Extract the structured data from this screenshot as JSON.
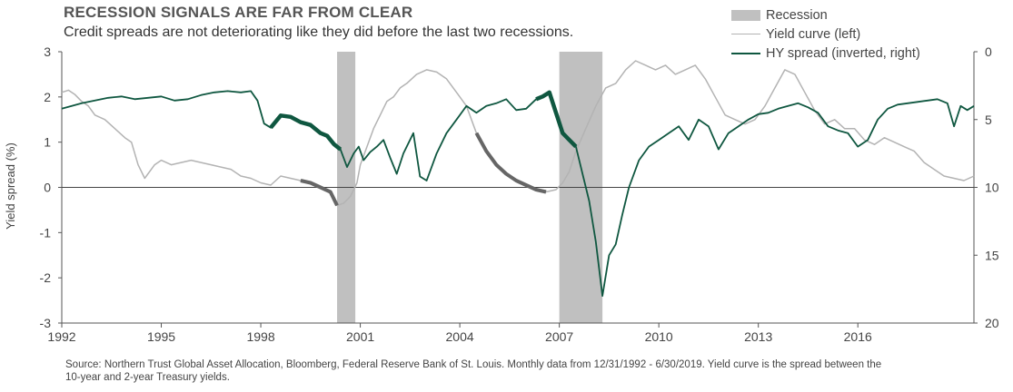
{
  "header": {
    "title": "RECESSION SIGNALS ARE FAR FROM CLEAR",
    "subtitle": "Credit spreads are not deteriorating like they did before the last two recessions."
  },
  "legend": {
    "recession": "Recession",
    "yield_curve": "Yield curve (left)",
    "hy_spread": "HY spread (inverted, right)"
  },
  "source": "Source: Northern Trust Global Asset Allocation, Bloomberg, Federal Reserve Bank of St. Louis. Monthly data from 12/31/1992 - 6/30/2019. Yield curve is the spread between the 10-year and 2-year Treasury yields.",
  "colors": {
    "yield_curve": "#b3b3b3",
    "yield_curve_highlight": "#666666",
    "hy_spread": "#0f5740",
    "recession": "#c0c0c0"
  },
  "chart_data": {
    "type": "line",
    "x_range": [
      1992.0,
      2019.5
    ],
    "ylim_left": [
      -3,
      3
    ],
    "ylim_right": [
      20,
      0
    ],
    "ylabel_left": "Yield spread  (%)",
    "ylabel_right": "",
    "x_ticks": [
      1992,
      1995,
      1998,
      2001,
      2004,
      2007,
      2010,
      2013,
      2016
    ],
    "x_tick_labels": [
      "1992",
      "1995",
      "1998",
      "2001",
      "2004",
      "2007",
      "2010",
      "2013",
      "2016"
    ],
    "y_left_ticks": [
      3,
      2,
      1,
      0,
      -1,
      -2,
      -3
    ],
    "y_left_tick_labels": [
      "3",
      "2",
      "1",
      "0",
      "-1",
      "-2",
      "-3"
    ],
    "y_right_ticks": [
      0,
      5,
      10,
      15,
      20
    ],
    "y_right_tick_labels": [
      "0",
      "5",
      "10",
      "15",
      "20"
    ],
    "recessions": [
      {
        "start": 2000.3,
        "end": 2000.85
      },
      {
        "start": 2007.0,
        "end": 2008.3
      }
    ],
    "series": [
      {
        "name": "Yield curve (left)",
        "axis": "left",
        "x": [
          1992.0,
          1992.2,
          1992.4,
          1992.6,
          1992.8,
          1993.0,
          1993.3,
          1993.6,
          1993.9,
          1994.1,
          1994.3,
          1994.5,
          1994.8,
          1995.0,
          1995.3,
          1995.6,
          1995.9,
          1996.2,
          1996.5,
          1996.8,
          1997.1,
          1997.4,
          1997.7,
          1998.0,
          1998.3,
          1998.6,
          1998.9,
          1999.2,
          1999.5,
          1999.8,
          2000.1,
          2000.3,
          2000.5,
          2000.7,
          2000.9,
          2001.0,
          2001.2,
          2001.4,
          2001.6,
          2001.8,
          2002.0,
          2002.2,
          2002.4,
          2002.7,
          2003.0,
          2003.3,
          2003.6,
          2003.9,
          2004.2,
          2004.5,
          2004.8,
          2005.1,
          2005.4,
          2005.7,
          2006.0,
          2006.3,
          2006.6,
          2006.9,
          2007.1,
          2007.3,
          2007.5,
          2007.8,
          2008.1,
          2008.4,
          2008.7,
          2009.0,
          2009.3,
          2009.6,
          2009.9,
          2010.2,
          2010.5,
          2010.8,
          2011.1,
          2011.4,
          2011.7,
          2012.0,
          2012.3,
          2012.6,
          2012.9,
          2013.2,
          2013.5,
          2013.8,
          2014.1,
          2014.4,
          2014.7,
          2015.0,
          2015.3,
          2015.6,
          2015.9,
          2016.2,
          2016.5,
          2016.8,
          2017.1,
          2017.4,
          2017.7,
          2018.0,
          2018.3,
          2018.6,
          2018.9,
          2019.2,
          2019.5
        ],
        "y": [
          2.1,
          2.15,
          2.05,
          1.9,
          1.8,
          1.6,
          1.5,
          1.3,
          1.1,
          1.0,
          0.5,
          0.2,
          0.5,
          0.6,
          0.5,
          0.55,
          0.6,
          0.55,
          0.5,
          0.45,
          0.4,
          0.25,
          0.2,
          0.1,
          0.05,
          0.25,
          0.2,
          0.15,
          0.1,
          0.0,
          -0.1,
          -0.4,
          -0.35,
          -0.2,
          0.1,
          0.5,
          0.9,
          1.3,
          1.6,
          1.9,
          2.0,
          2.2,
          2.3,
          2.5,
          2.6,
          2.55,
          2.4,
          2.1,
          1.8,
          1.2,
          0.8,
          0.5,
          0.3,
          0.15,
          0.05,
          -0.05,
          -0.1,
          -0.05,
          0.1,
          0.35,
          0.8,
          1.3,
          1.8,
          2.2,
          2.3,
          2.6,
          2.8,
          2.7,
          2.6,
          2.7,
          2.5,
          2.6,
          2.7,
          2.4,
          2.0,
          1.6,
          1.5,
          1.4,
          1.5,
          1.8,
          2.2,
          2.6,
          2.5,
          2.1,
          1.7,
          1.4,
          1.5,
          1.3,
          1.3,
          1.05,
          0.95,
          1.1,
          1.0,
          0.9,
          0.8,
          0.55,
          0.4,
          0.25,
          0.2,
          0.15,
          0.25
        ]
      },
      {
        "name": "HY spread (inverted, right)",
        "axis": "right",
        "x": [
          1992.0,
          1992.3,
          1992.6,
          1993.0,
          1993.4,
          1993.8,
          1994.2,
          1994.6,
          1995.0,
          1995.4,
          1995.8,
          1996.2,
          1996.6,
          1997.0,
          1997.4,
          1997.7,
          1997.9,
          1998.1,
          1998.3,
          1998.6,
          1998.9,
          1999.2,
          1999.5,
          1999.8,
          2000.0,
          2000.2,
          2000.4,
          2000.6,
          2000.8,
          2000.95,
          2001.1,
          2001.3,
          2001.5,
          2001.7,
          2001.9,
          2002.1,
          2002.3,
          2002.6,
          2002.8,
          2003.0,
          2003.3,
          2003.6,
          2003.9,
          2004.2,
          2004.5,
          2004.8,
          2005.1,
          2005.4,
          2005.7,
          2006.0,
          2006.3,
          2006.5,
          2006.7,
          2006.9,
          2007.1,
          2007.3,
          2007.5,
          2007.7,
          2007.9,
          2008.1,
          2008.3,
          2008.5,
          2008.7,
          2008.9,
          2009.1,
          2009.4,
          2009.7,
          2010.0,
          2010.3,
          2010.6,
          2010.9,
          2011.2,
          2011.5,
          2011.8,
          2012.1,
          2012.4,
          2012.7,
          2013.0,
          2013.3,
          2013.6,
          2013.9,
          2014.2,
          2014.5,
          2014.8,
          2015.1,
          2015.4,
          2015.7,
          2016.0,
          2016.3,
          2016.6,
          2016.9,
          2017.2,
          2017.5,
          2017.8,
          2018.1,
          2018.4,
          2018.7,
          2018.9,
          2019.1,
          2019.3,
          2019.5
        ],
        "y": [
          4.2,
          4.0,
          3.8,
          3.6,
          3.4,
          3.3,
          3.5,
          3.4,
          3.3,
          3.6,
          3.5,
          3.2,
          3.0,
          2.9,
          3.0,
          2.9,
          3.6,
          5.3,
          5.6,
          4.7,
          4.8,
          5.2,
          5.4,
          6.0,
          6.2,
          6.8,
          7.2,
          8.5,
          7.5,
          7.0,
          8.0,
          7.4,
          7.0,
          6.5,
          7.8,
          9.0,
          7.5,
          6.0,
          9.2,
          9.5,
          7.5,
          6.0,
          5.0,
          4.0,
          4.5,
          4.0,
          3.8,
          3.5,
          4.3,
          4.2,
          3.5,
          3.3,
          3.0,
          4.5,
          6.0,
          6.5,
          7.0,
          9.0,
          11.0,
          14.0,
          18.0,
          15.0,
          14.2,
          12.0,
          10.0,
          8.0,
          7.0,
          6.5,
          6.0,
          5.5,
          6.5,
          5.0,
          5.5,
          7.2,
          6.0,
          5.5,
          5.0,
          4.6,
          4.5,
          4.2,
          4.0,
          3.8,
          4.1,
          4.5,
          5.5,
          5.8,
          6.0,
          7.0,
          6.5,
          5.0,
          4.2,
          3.9,
          3.8,
          3.7,
          3.6,
          3.5,
          3.8,
          5.5,
          4.0,
          4.3,
          4.0
        ]
      }
    ]
  }
}
